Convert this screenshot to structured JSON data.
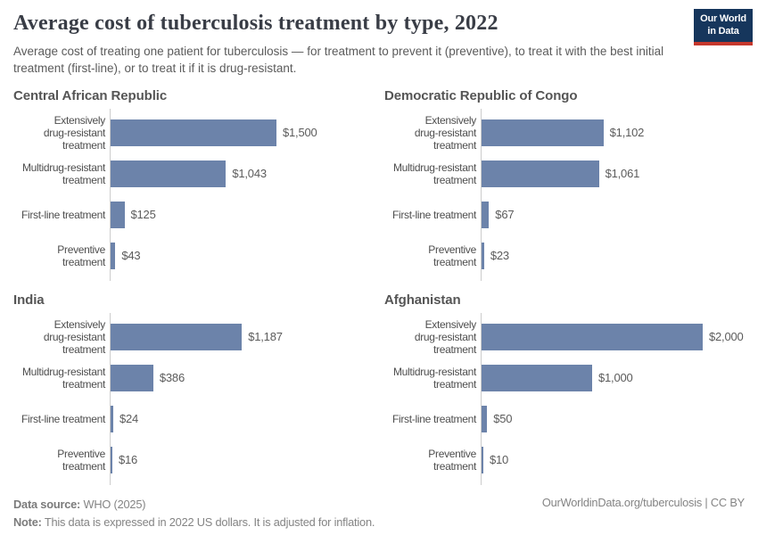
{
  "header": {
    "title": "Average cost of tuberculosis treatment by type, 2022",
    "subtitle": "Average cost of treating one patient for tuberculosis — for treatment to prevent it (preventive), to treat it with the best initial treatment (first-line), or to treat it if it is drug-resistant.",
    "logo": {
      "line1": "Our World",
      "line2": "in Data"
    }
  },
  "chart_data": {
    "type": "bar",
    "orientation": "horizontal",
    "title": "Average cost of tuberculosis treatment by type, 2022",
    "unit": "2022 US dollars",
    "xmax": 2000,
    "bar_color": "#6c83aa",
    "axis_color": "#cccccc",
    "grid": false,
    "categories": [
      "Extensively\ndrug-resistant\ntreatment",
      "Multidrug-resistant\ntreatment",
      "First-line treatment",
      "Preventive\ntreatment"
    ],
    "panels": [
      {
        "title": "Central African Republic",
        "values": [
          1500,
          1043,
          125,
          43
        ],
        "labels": [
          "$1,500",
          "$1,043",
          "$125",
          "$43"
        ]
      },
      {
        "title": "Democratic Republic of Congo",
        "values": [
          1102,
          1061,
          67,
          23
        ],
        "labels": [
          "$1,102",
          "$1,061",
          "$67",
          "$23"
        ]
      },
      {
        "title": "India",
        "values": [
          1187,
          386,
          24,
          16
        ],
        "labels": [
          "$1,187",
          "$386",
          "$24",
          "$16"
        ]
      },
      {
        "title": "Afghanistan",
        "values": [
          2000,
          1000,
          50,
          10
        ],
        "labels": [
          "$2,000",
          "$1,000",
          "$50",
          "$10"
        ]
      }
    ]
  },
  "footer": {
    "source_label": "Data source:",
    "source_value": " WHO (2025)",
    "note_label": "Note:",
    "note_value": " This data is expressed in 2022 US dollars. It is adjusted for inflation.",
    "link": "OurWorldinData.org/tuberculosis | CC BY"
  }
}
